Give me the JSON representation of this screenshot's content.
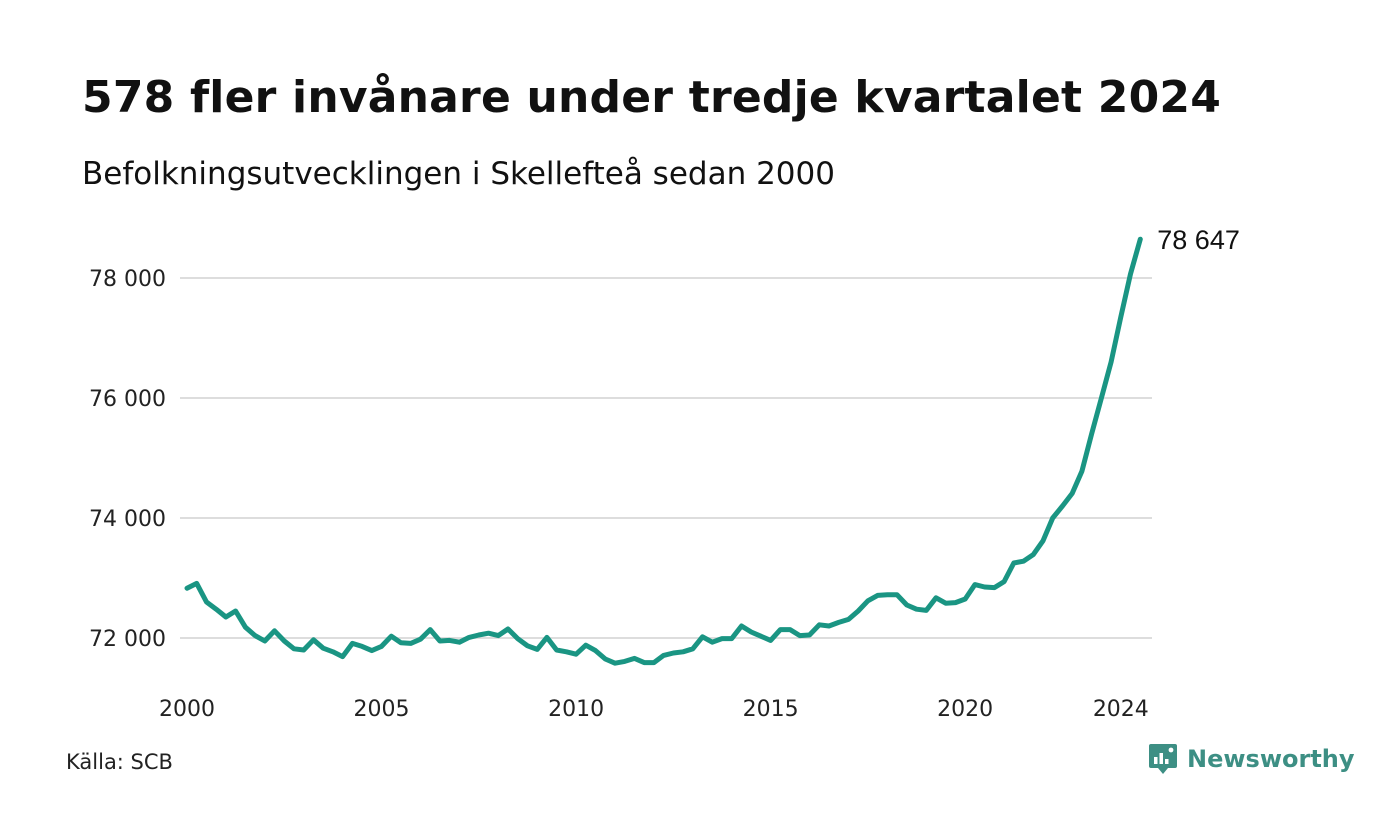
{
  "title": "578 fler invånare under tredje kvartalet 2024",
  "subtitle": "Befolkningsutvecklingen i Skellefteå sedan 2000",
  "source": "Källa: SCB",
  "brand": {
    "name": "Newsworthy",
    "icon": "newsworthy-logo-icon",
    "color": "#3d8f84"
  },
  "chart_data": {
    "type": "line",
    "x_start": 2000,
    "x_step": 0.25,
    "xlim": [
      2000,
      2024.75
    ],
    "ylim": [
      71200,
      78800
    ],
    "x_ticks": [
      2000,
      2005,
      2010,
      2015,
      2020,
      2024
    ],
    "x_tick_labels": [
      "2000",
      "2005",
      "2010",
      "2015",
      "2020",
      "2024"
    ],
    "y_ticks": [
      72000,
      74000,
      76000,
      78000
    ],
    "y_tick_labels": [
      "72 000",
      "74 000",
      "76 000",
      "78 000"
    ],
    "grid": true,
    "line_color": "#1a9583",
    "end_label": "78 647",
    "series": [
      {
        "values": [
          72830,
          72910,
          72600,
          72480,
          72350,
          72450,
          72180,
          72040,
          71950,
          72120,
          71950,
          71820,
          71800,
          71970,
          71830,
          71770,
          71690,
          71910,
          71860,
          71790,
          71860,
          72030,
          71920,
          71910,
          71980,
          72140,
          71950,
          71960,
          71930,
          72010,
          72050,
          72080,
          72040,
          72150,
          71990,
          71870,
          71810,
          72010,
          71800,
          71770,
          71730,
          71880,
          71790,
          71650,
          71580,
          71610,
          71660,
          71590,
          71590,
          71710,
          71750,
          71770,
          71820,
          72020,
          71930,
          71990,
          71990,
          72200,
          72100,
          72030,
          71960,
          72140,
          72140,
          72040,
          72050,
          72220,
          72200,
          72260,
          72310,
          72450,
          72620,
          72710,
          72720,
          72720,
          72550,
          72480,
          72460,
          72670,
          72580,
          72590,
          72650,
          72890,
          72850,
          72840,
          72940,
          73250,
          73280,
          73390,
          73620,
          74000,
          74200,
          74410,
          74780,
          75400,
          76000,
          76600,
          77350,
          78069,
          78647
        ]
      }
    ]
  }
}
